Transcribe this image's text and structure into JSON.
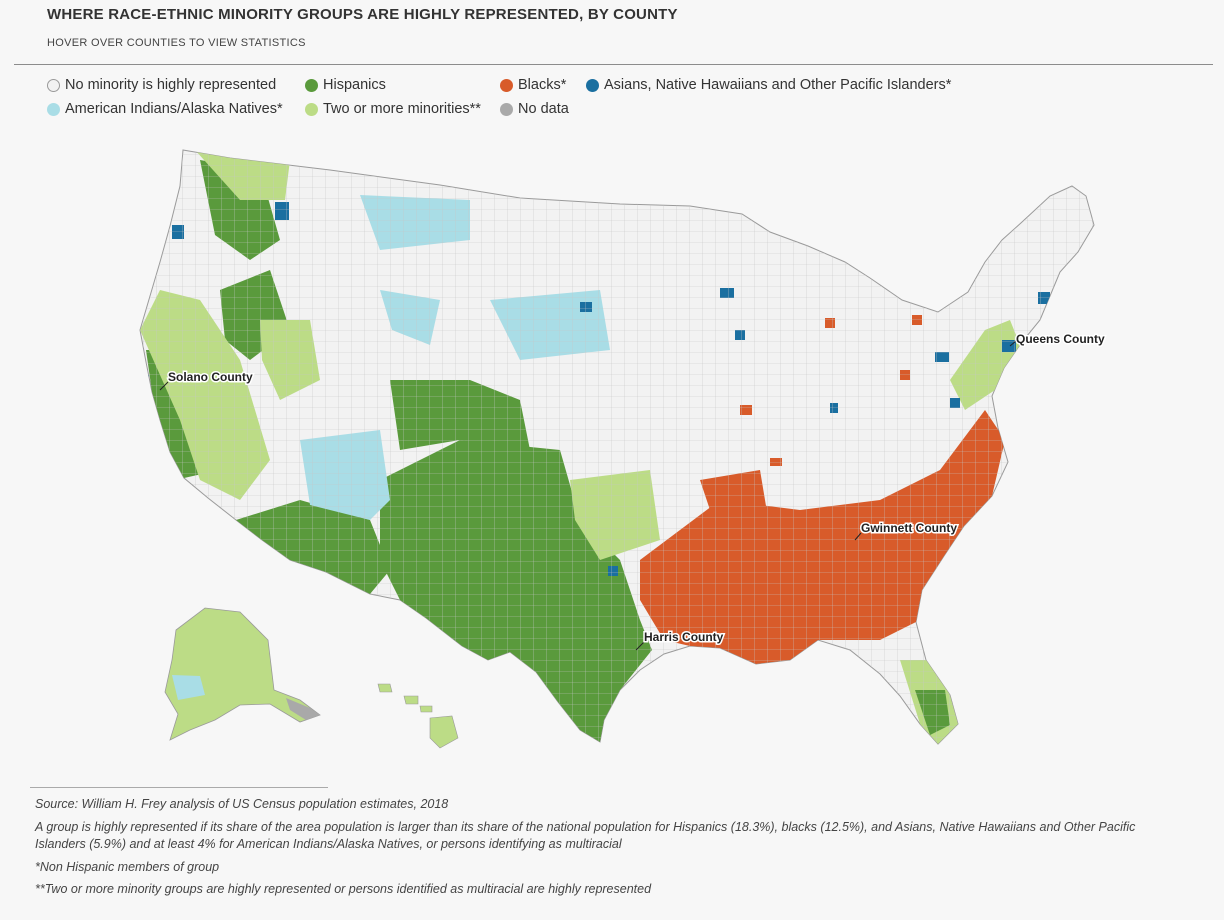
{
  "title": "WHERE RACE-ETHNIC MINORITY GROUPS ARE HIGHLY REPRESENTED, BY COUNTY",
  "subtitle": "HOVER OVER COUNTIES TO VIEW STATISTICS",
  "legend": {
    "none": {
      "label": "No minority is highly represented",
      "color": "#f2f2f2"
    },
    "hispanic": {
      "label": "Hispanics",
      "color": "#5a9a3c"
    },
    "black": {
      "label": "Blacks*",
      "color": "#d85b2a"
    },
    "asian": {
      "label": "Asians, Native Hawaiians and Other Pacific Islanders*",
      "color": "#1a6fa0"
    },
    "aian": {
      "label": "American Indians/Alaska Natives*",
      "color": "#a9dde6"
    },
    "multi": {
      "label": "Two or more minorities**",
      "color": "#bcdc86"
    },
    "nodata": {
      "label": "No data",
      "color": "#a9a9a9"
    }
  },
  "callouts": {
    "solano": "Solano County",
    "queens": "Queens County",
    "gwinnett": "Gwinnett County",
    "harris": "Harris County"
  },
  "notes": {
    "source": "Source: William H. Frey analysis of US Census population estimates, 2018",
    "definition": "A group is highly represented if its share of the area population is larger than its share of the national population for Hispanics (18.3%), blacks (12.5%), and Asians, Native Hawaiians and Other Pacific Islanders (5.9%) and at least 4% for American Indians/Alaska Natives, or persons identifying as multiracial",
    "footnote1": "*Non Hispanic members of group",
    "footnote2": "**Two or more minority groups are highly represented or persons identified as multiracial are highly represented"
  }
}
